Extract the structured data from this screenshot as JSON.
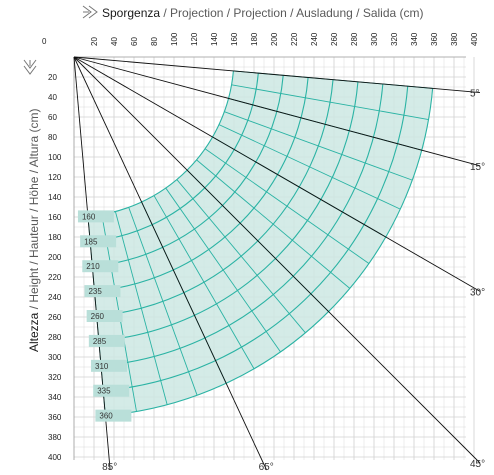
{
  "header": {
    "title_bold": "Sporgenza",
    "title_rest": " / Projection / Projection / Ausladung / Salida (cm)",
    "arrow_icon": "double-arrow-right-icon"
  },
  "side": {
    "label_bold": "Altezza",
    "label_rest": " / Height / Hauteur / Höhe / Altura  (cm)",
    "arrow_icon": "double-arrow-down-icon"
  },
  "axes": {
    "x_origin_label": "0",
    "x_ticks": [
      20,
      40,
      60,
      80,
      100,
      120,
      140,
      160,
      180,
      200,
      220,
      240,
      260,
      280,
      300,
      320,
      340,
      360,
      380,
      400
    ],
    "y_ticks": [
      20,
      40,
      60,
      80,
      100,
      120,
      140,
      160,
      180,
      200,
      220,
      240,
      260,
      280,
      300,
      320,
      340,
      360,
      380,
      400
    ],
    "x_range": [
      0,
      400
    ],
    "y_range": [
      0,
      400
    ],
    "pivot": [
      0,
      0
    ]
  },
  "arm_lengths": [
    "160",
    "185",
    "210",
    "235",
    "260",
    "285",
    "310",
    "335",
    "360"
  ],
  "arm_values": [
    160,
    185,
    210,
    235,
    260,
    285,
    310,
    335,
    360
  ],
  "angle_labels": [
    "5°",
    "15°",
    "30°",
    "45°",
    "65°",
    "85°"
  ],
  "angle_values": [
    5,
    15,
    30,
    45,
    65,
    85
  ],
  "colors": {
    "zone_fill": "#cde8e3",
    "arc_stroke": "#2bb3a4",
    "badge_fill": "#b9dfd9",
    "grid": "#d0d0d0",
    "line": "#111111"
  }
}
